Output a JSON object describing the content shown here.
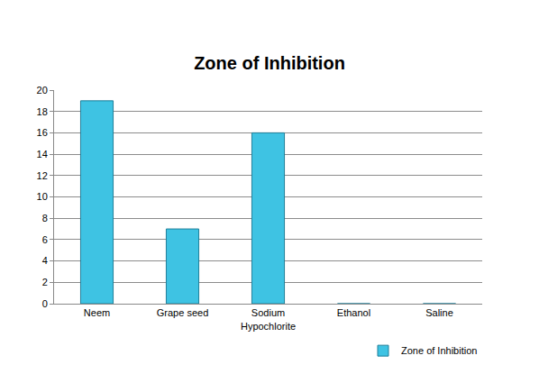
{
  "chart_data": {
    "type": "bar",
    "title": "Zone of Inhibition",
    "categories": [
      "Neem",
      "Grape seed",
      "Sodium Hypochlorite",
      "Ethanol",
      "Saline"
    ],
    "series": [
      {
        "name": "Zone of Inhibition",
        "color": "#3ec3e3",
        "values": [
          19,
          7,
          16,
          0,
          0
        ]
      }
    ],
    "ylim": [
      0,
      20
    ],
    "yticks": [
      0,
      2,
      4,
      6,
      8,
      10,
      12,
      14,
      16,
      18,
      20
    ],
    "grid": true,
    "legend": "bottom right"
  }
}
